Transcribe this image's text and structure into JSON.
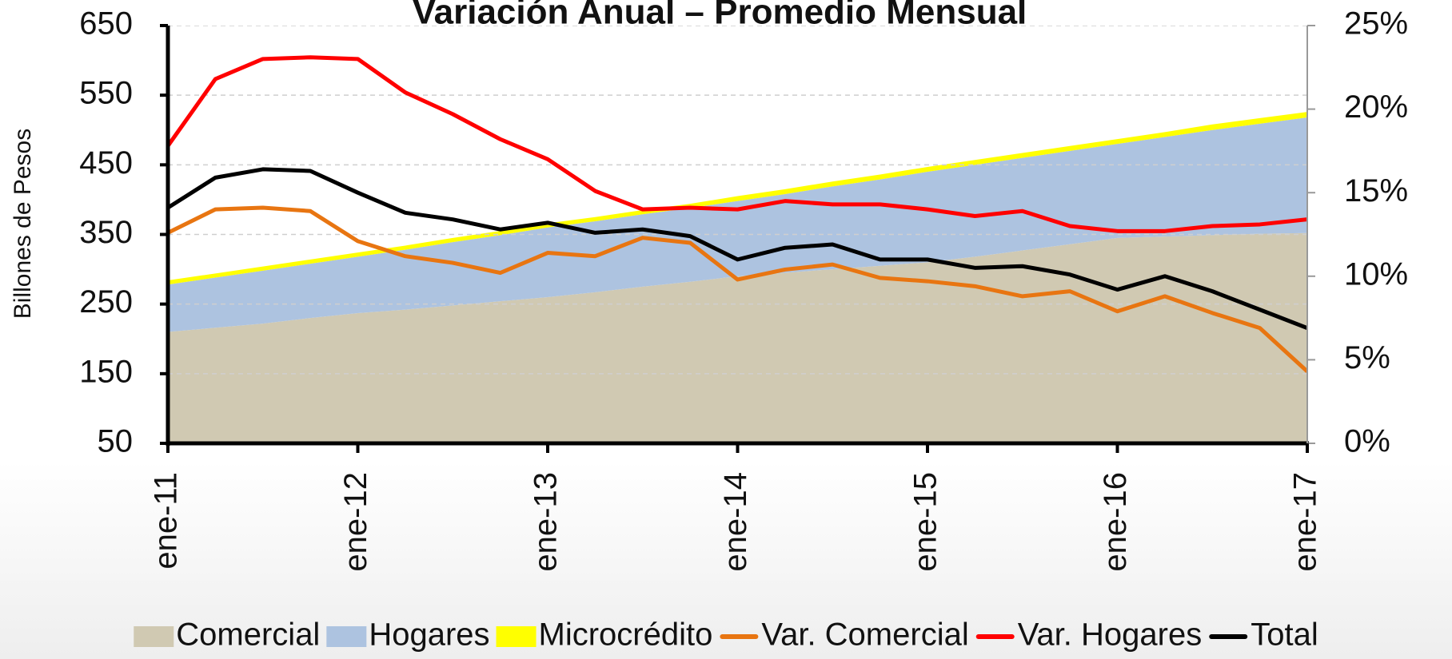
{
  "chart_data": {
    "type": "area",
    "stacked": true,
    "title": "Variación Anual – Promedio Mensual",
    "y_label": "Billones de Pesos",
    "categories": [
      "ene-11",
      null,
      null,
      null,
      "ene-12",
      null,
      null,
      null,
      "ene-13",
      null,
      null,
      null,
      "ene-14",
      null,
      null,
      null,
      "ene-15",
      null,
      null,
      null,
      "ene-16",
      null,
      null,
      null,
      "ene-17"
    ],
    "series": [
      {
        "name": "Comercial",
        "type": "area",
        "color": "#d0c9b2",
        "values": [
          210,
          216,
          222,
          230,
          237,
          242,
          248,
          254,
          260,
          267,
          275,
          282,
          290,
          295,
          300,
          305,
          310,
          318,
          327,
          336,
          345,
          347,
          349,
          351,
          352
        ]
      },
      {
        "name": "Hogares",
        "type": "area",
        "color": "#adc3e0",
        "values": [
          68,
          72,
          76,
          78,
          81,
          86,
          91,
          95,
          100,
          102,
          104,
          106,
          108,
          113,
          119,
          124,
          130,
          132,
          133,
          134,
          135,
          143,
          151,
          158,
          166
        ]
      },
      {
        "name": "Microcrédito",
        "type": "area",
        "color": "#ffff00",
        "values": [
          6,
          6,
          6,
          6,
          6,
          6,
          6,
          6,
          6,
          6,
          6,
          6,
          7,
          7,
          7,
          7,
          7,
          7,
          7,
          7,
          7,
          7,
          8,
          8,
          8
        ]
      },
      {
        "name": "Var. Comercial",
        "type": "line",
        "axis": "y2",
        "color": "#e87511",
        "values": [
          12.6,
          14.0,
          14.1,
          13.9,
          12.1,
          11.2,
          10.8,
          10.2,
          11.4,
          11.2,
          12.3,
          12.0,
          9.8,
          10.4,
          10.7,
          9.9,
          9.7,
          9.4,
          8.8,
          9.1,
          7.9,
          8.8,
          7.8,
          6.9,
          4.3
        ]
      },
      {
        "name": "Var. Hogares",
        "type": "line",
        "axis": "y2",
        "color": "#ff0000",
        "values": [
          17.8,
          21.8,
          23.0,
          23.1,
          23.0,
          21.0,
          19.7,
          18.2,
          17.0,
          15.1,
          14.0,
          14.1,
          14.0,
          14.5,
          14.3,
          14.3,
          14.0,
          13.6,
          13.9,
          13.0,
          12.7,
          12.7,
          13.0,
          13.1,
          13.4
        ]
      },
      {
        "name": "Total",
        "type": "line",
        "axis": "y2",
        "color": "#000000",
        "values": [
          14.1,
          15.9,
          16.4,
          16.3,
          15.0,
          13.8,
          13.4,
          12.8,
          13.2,
          12.6,
          12.8,
          12.4,
          11.0,
          11.7,
          11.9,
          11.0,
          11.0,
          10.5,
          10.6,
          10.1,
          9.2,
          10.0,
          9.1,
          8.0,
          6.9
        ]
      }
    ],
    "ylim": [
      50,
      650
    ],
    "yticks": [
      50,
      150,
      250,
      350,
      450,
      550,
      650
    ],
    "y2lim": [
      0,
      25
    ],
    "y2ticks": [
      {
        "value": 0,
        "label": "0%"
      },
      {
        "value": 5,
        "label": "5%"
      },
      {
        "value": 10,
        "label": "10%"
      },
      {
        "value": 15,
        "label": "15%"
      },
      {
        "value": 20,
        "label": "20%"
      },
      {
        "value": 25,
        "label": "25%"
      }
    ],
    "grid": true,
    "legend": "bottom"
  }
}
